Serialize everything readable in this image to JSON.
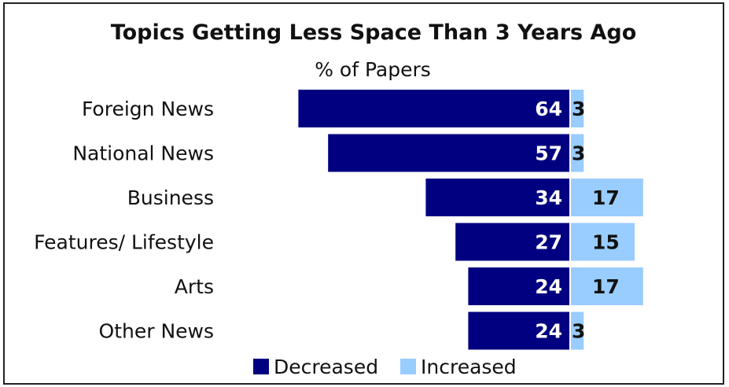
{
  "chart_data": {
    "type": "bar",
    "title": "Topics Getting Less Space Than 3 Years Ago",
    "subtitle": "% of Papers",
    "categories": [
      "Foreign News",
      "National News",
      "Business",
      "Features/ Lifestyle",
      "Arts",
      "Other News"
    ],
    "series": [
      {
        "name": "Decreased",
        "values": [
          64,
          57,
          34,
          27,
          24,
          24
        ],
        "color": "#000080"
      },
      {
        "name": "Increased",
        "values": [
          3,
          3,
          17,
          15,
          17,
          3
        ],
        "color": "#99ccff"
      }
    ],
    "orientation": "horizontal-diverging",
    "legend": "bottom-center",
    "grid": false
  }
}
